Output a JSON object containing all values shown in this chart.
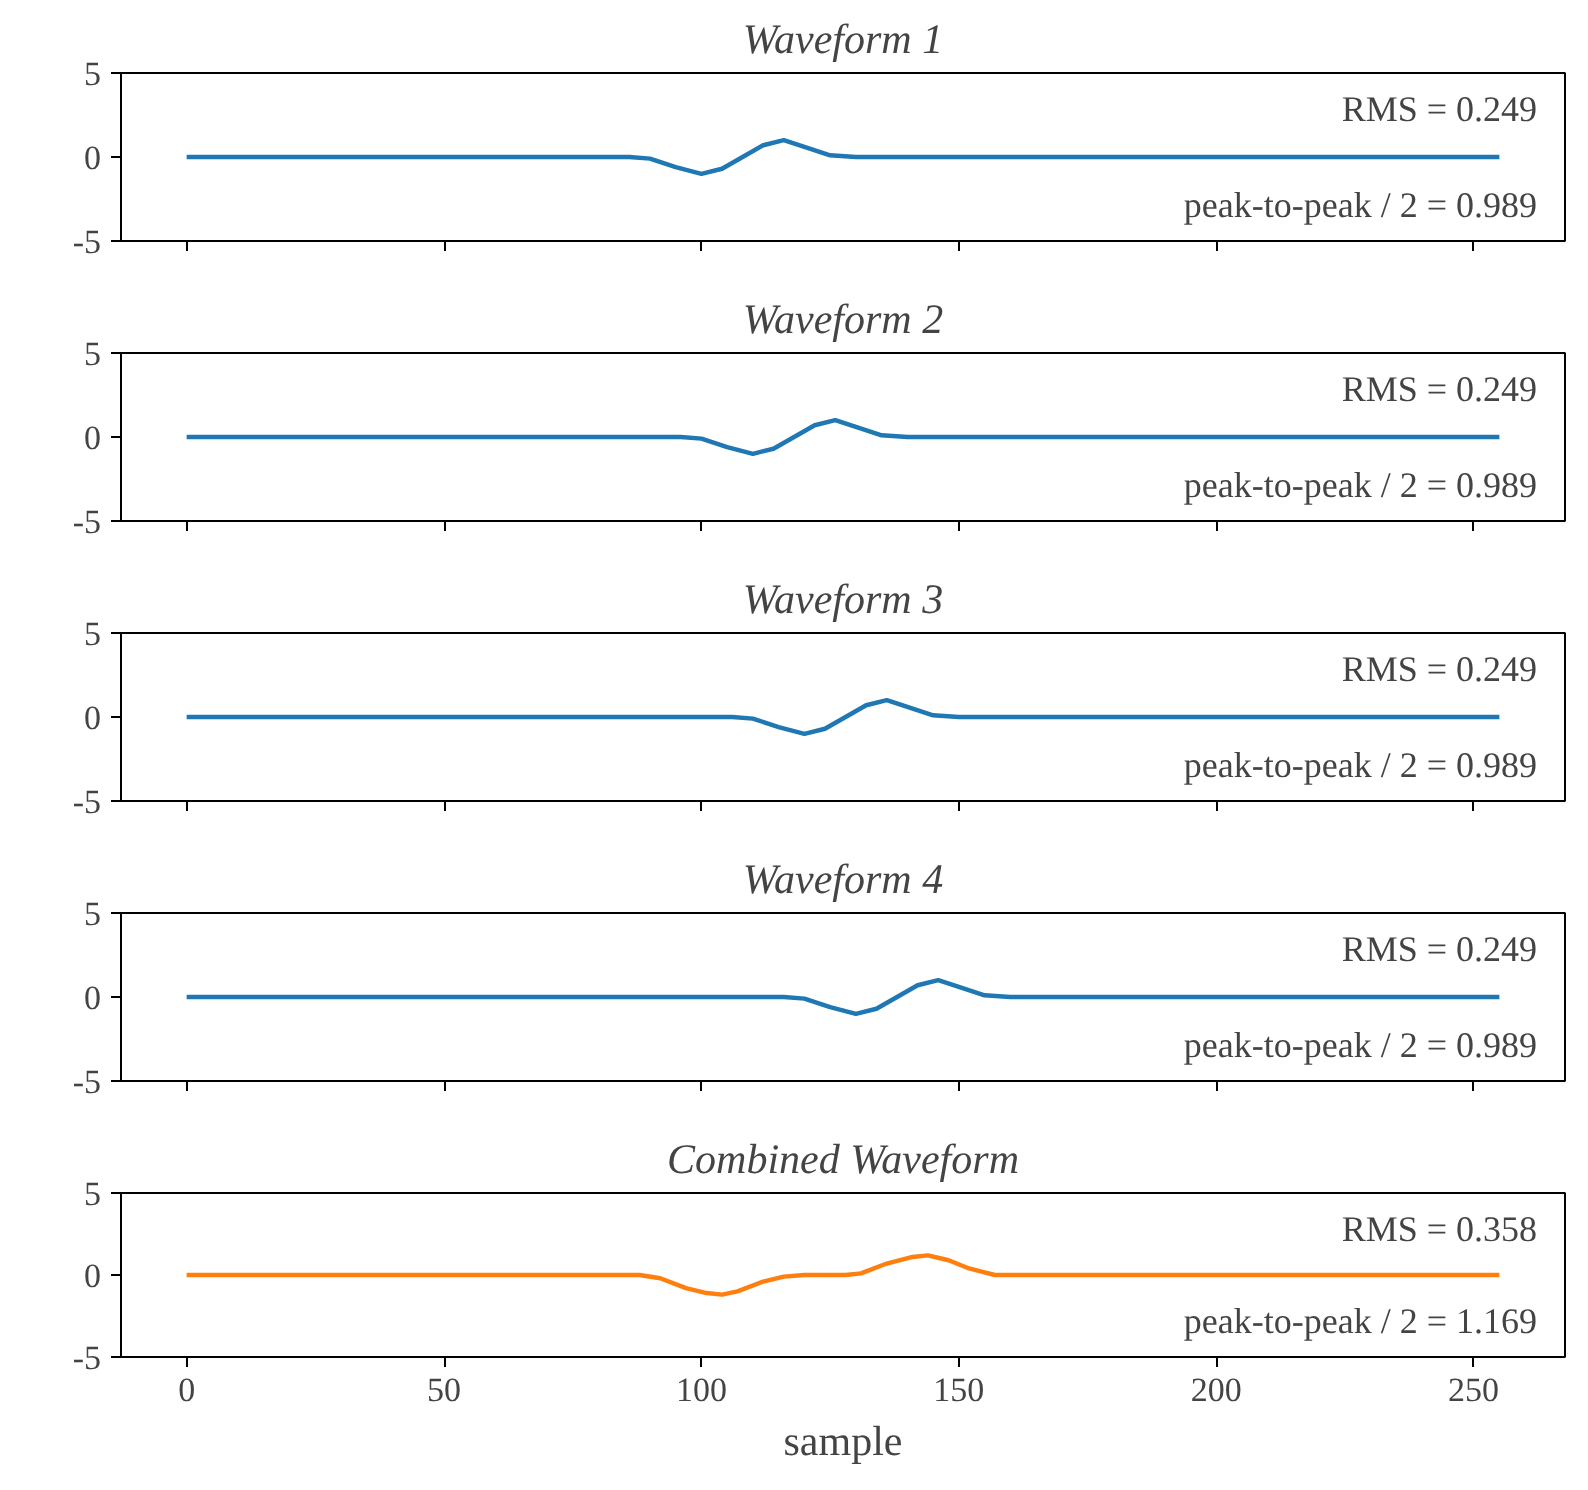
{
  "chart_data": [
    {
      "type": "line",
      "title": "Waveform 1",
      "x": [
        0,
        86,
        90,
        95,
        100,
        104,
        108,
        112,
        116,
        120,
        125,
        130,
        255
      ],
      "series": [
        {
          "color": "#1f77b4",
          "values": [
            0,
            0,
            -0.1,
            -0.6,
            -1,
            -0.7,
            0,
            0.7,
            1,
            0.6,
            0.1,
            0,
            0
          ]
        }
      ],
      "xlim": [
        -12.75,
        267.75
      ],
      "ylim": [
        -5,
        5
      ],
      "xticks": [
        0,
        50,
        100,
        150,
        200,
        250
      ],
      "yticks": [
        -5,
        0,
        5
      ],
      "tick_labels": "y",
      "annotations": [
        "RMS = 0.249",
        "peak-to-peak / 2 = 0.989"
      ]
    },
    {
      "type": "line",
      "title": "Waveform 2",
      "x": [
        0,
        96,
        100,
        105,
        110,
        114,
        118,
        122,
        126,
        130,
        135,
        140,
        255
      ],
      "series": [
        {
          "color": "#1f77b4",
          "values": [
            0,
            0,
            -0.1,
            -0.6,
            -1,
            -0.7,
            0,
            0.7,
            1,
            0.6,
            0.1,
            0,
            0
          ]
        }
      ],
      "xlim": [
        -12.75,
        267.75
      ],
      "ylim": [
        -5,
        5
      ],
      "xticks": [
        0,
        50,
        100,
        150,
        200,
        250
      ],
      "yticks": [
        -5,
        0,
        5
      ],
      "tick_labels": "y",
      "annotations": [
        "RMS = 0.249",
        "peak-to-peak / 2 = 0.989"
      ]
    },
    {
      "type": "line",
      "title": "Waveform 3",
      "x": [
        0,
        106,
        110,
        115,
        120,
        124,
        128,
        132,
        136,
        140,
        145,
        150,
        255
      ],
      "series": [
        {
          "color": "#1f77b4",
          "values": [
            0,
            0,
            -0.1,
            -0.6,
            -1,
            -0.7,
            0,
            0.7,
            1,
            0.6,
            0.1,
            0,
            0
          ]
        }
      ],
      "xlim": [
        -12.75,
        267.75
      ],
      "ylim": [
        -5,
        5
      ],
      "xticks": [
        0,
        50,
        100,
        150,
        200,
        250
      ],
      "yticks": [
        -5,
        0,
        5
      ],
      "tick_labels": "y",
      "annotations": [
        "RMS = 0.249",
        "peak-to-peak / 2 = 0.989"
      ]
    },
    {
      "type": "line",
      "title": "Waveform 4",
      "x": [
        0,
        116,
        120,
        125,
        130,
        134,
        138,
        142,
        146,
        150,
        155,
        160,
        255
      ],
      "series": [
        {
          "color": "#1f77b4",
          "values": [
            0,
            0,
            -0.1,
            -0.6,
            -1,
            -0.7,
            0,
            0.7,
            1,
            0.6,
            0.1,
            0,
            0
          ]
        }
      ],
      "xlim": [
        -12.75,
        267.75
      ],
      "ylim": [
        -5,
        5
      ],
      "xticks": [
        0,
        50,
        100,
        150,
        200,
        250
      ],
      "yticks": [
        -5,
        0,
        5
      ],
      "tick_labels": "y",
      "annotations": [
        "RMS = 0.249",
        "peak-to-peak / 2 = 0.989"
      ]
    },
    {
      "type": "line",
      "title": "Combined Waveform",
      "xlabel": "sample",
      "x": [
        0,
        88,
        92,
        97,
        101,
        104,
        107,
        112,
        116,
        120,
        128,
        131,
        136,
        141,
        144,
        148,
        152,
        157,
        162,
        255
      ],
      "series": [
        {
          "color": "#ff7f0e",
          "values": [
            0,
            0,
            -0.2,
            -0.8,
            -1.1,
            -1.2,
            -1.0,
            -0.4,
            -0.1,
            0,
            0,
            0.1,
            0.7,
            1.1,
            1.2,
            0.9,
            0.4,
            0,
            0,
            0
          ]
        }
      ],
      "xlim": [
        -12.75,
        267.75
      ],
      "ylim": [
        -5,
        5
      ],
      "xticks": [
        0,
        50,
        100,
        150,
        200,
        250
      ],
      "yticks": [
        -5,
        0,
        5
      ],
      "annotations": [
        "RMS = 0.358",
        "peak-to-peak / 2 = 1.169"
      ]
    }
  ]
}
